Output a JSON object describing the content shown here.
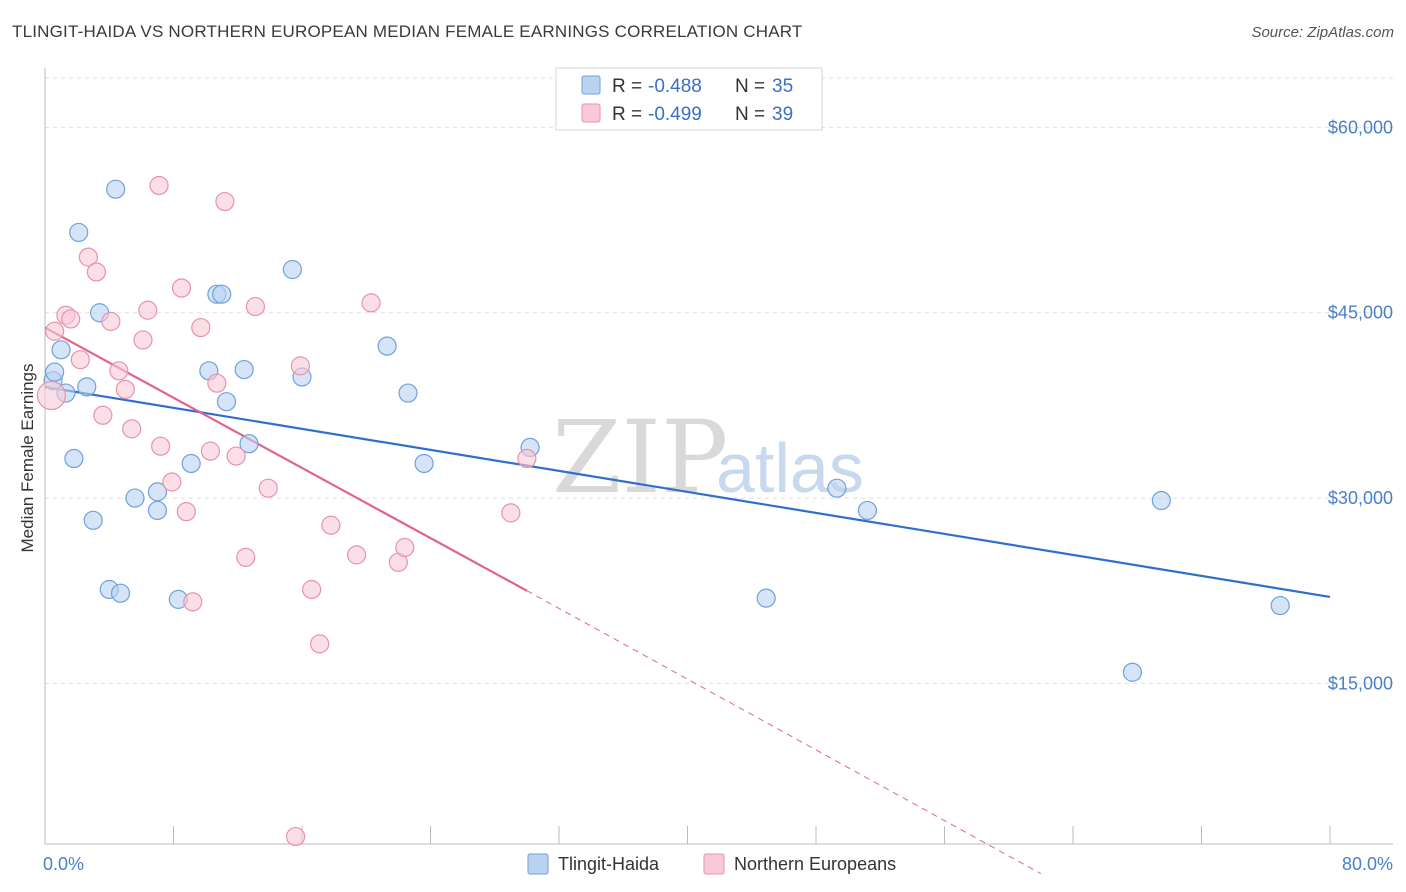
{
  "title": "TLINGIT-HAIDA VS NORTHERN EUROPEAN MEDIAN FEMALE EARNINGS CORRELATION CHART",
  "source": "Source: ZipAtlas.com",
  "watermark": {
    "zip": "ZIP",
    "atlas": "atlas"
  },
  "chart_data": {
    "type": "scatter",
    "xlabel": "",
    "ylabel": "Median Female Earnings",
    "xlim": [
      0,
      80
    ],
    "ylim": [
      2000,
      64000
    ],
    "x_tick_labels": {
      "min": "0.0%",
      "max": "80.0%"
    },
    "y_ticks": [
      {
        "value": 15000,
        "label": "$15,000"
      },
      {
        "value": 30000,
        "label": "$30,000"
      },
      {
        "value": 45000,
        "label": "$45,000"
      },
      {
        "value": 60000,
        "label": "$60,000"
      }
    ],
    "grid": true,
    "legend_position": "top-center",
    "legend": [
      {
        "r_label": "R =",
        "r_value": "-0.488",
        "n_label": "N =",
        "n_value": "35"
      },
      {
        "r_label": "R =",
        "r_value": "-0.499",
        "n_label": "N =",
        "n_value": "39"
      }
    ],
    "series": [
      {
        "name": "Tlingit-Haida",
        "color": "#6fa1dc",
        "fill": "#b9d2f0",
        "line_color": "#2f6fcc",
        "trend": {
          "x0": 0,
          "y0": 39000,
          "x1": 80,
          "y1": 22000,
          "dashed_from": null
        },
        "points": [
          [
            0.5,
            39500
          ],
          [
            0.6,
            40200
          ],
          [
            1.0,
            42000
          ],
          [
            1.3,
            38500
          ],
          [
            1.8,
            33200
          ],
          [
            2.1,
            51500
          ],
          [
            2.6,
            39000
          ],
          [
            3.0,
            28200
          ],
          [
            3.4,
            45000
          ],
          [
            4.0,
            22600
          ],
          [
            4.4,
            55000
          ],
          [
            4.7,
            22300
          ],
          [
            5.6,
            30000
          ],
          [
            7.0,
            29000
          ],
          [
            7.0,
            30500
          ],
          [
            8.3,
            21800
          ],
          [
            9.1,
            32800
          ],
          [
            10.2,
            40300
          ],
          [
            10.7,
            46500
          ],
          [
            11.0,
            46500
          ],
          [
            11.3,
            37800
          ],
          [
            12.4,
            40400
          ],
          [
            12.7,
            34400
          ],
          [
            15.4,
            48500
          ],
          [
            16.0,
            39800
          ],
          [
            21.3,
            42300
          ],
          [
            22.6,
            38500
          ],
          [
            23.6,
            32800
          ],
          [
            30.2,
            34100
          ],
          [
            44.9,
            21900
          ],
          [
            49.3,
            30800
          ],
          [
            51.2,
            29000
          ],
          [
            67.7,
            15900
          ],
          [
            69.5,
            29800
          ],
          [
            76.9,
            21300
          ]
        ]
      },
      {
        "name": "Northern Europeans",
        "color": "#e892ad",
        "fill": "#f8c9d7",
        "line_color": "#e0648d",
        "trend": {
          "x0": 0,
          "y0": 43800,
          "x1": 30,
          "y1": 22500,
          "dashed_to_x": 62,
          "dashed_to_y": -400
        },
        "points": [
          [
            0.4,
            38300
          ],
          [
            0.6,
            43500
          ],
          [
            1.3,
            44800
          ],
          [
            1.6,
            44500
          ],
          [
            2.2,
            41200
          ],
          [
            2.7,
            49500
          ],
          [
            3.2,
            48300
          ],
          [
            3.6,
            36700
          ],
          [
            4.1,
            44300
          ],
          [
            4.6,
            40300
          ],
          [
            5.0,
            38800
          ],
          [
            5.4,
            35600
          ],
          [
            6.1,
            42800
          ],
          [
            6.4,
            45200
          ],
          [
            7.1,
            55300
          ],
          [
            7.2,
            34200
          ],
          [
            7.9,
            31300
          ],
          [
            8.5,
            47000
          ],
          [
            8.8,
            28900
          ],
          [
            9.2,
            21600
          ],
          [
            9.7,
            43800
          ],
          [
            10.3,
            33800
          ],
          [
            10.7,
            39300
          ],
          [
            11.2,
            54000
          ],
          [
            11.9,
            33400
          ],
          [
            12.5,
            25200
          ],
          [
            13.1,
            45500
          ],
          [
            13.9,
            30800
          ],
          [
            15.6,
            2600
          ],
          [
            15.9,
            40700
          ],
          [
            16.6,
            22600
          ],
          [
            17.1,
            18200
          ],
          [
            17.8,
            27800
          ],
          [
            19.4,
            25400
          ],
          [
            20.3,
            45800
          ],
          [
            22.0,
            24800
          ],
          [
            22.4,
            26000
          ],
          [
            29.0,
            28800
          ],
          [
            30.0,
            33200
          ]
        ]
      }
    ]
  }
}
